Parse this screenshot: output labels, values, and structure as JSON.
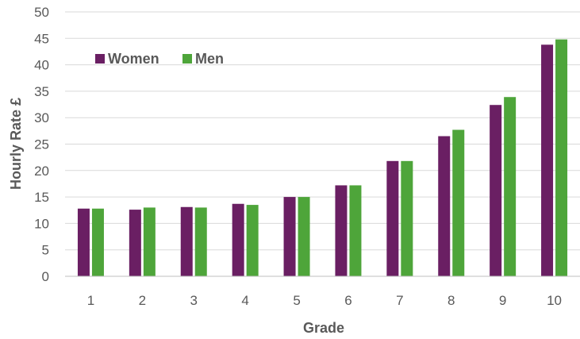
{
  "chart_data": {
    "type": "bar",
    "categories": [
      "1",
      "2",
      "3",
      "4",
      "5",
      "6",
      "7",
      "8",
      "9",
      "10"
    ],
    "series": [
      {
        "name": "Women",
        "color": "#6a1f63",
        "values": [
          12.8,
          12.6,
          13.1,
          13.7,
          15.0,
          17.2,
          21.8,
          26.5,
          32.4,
          43.8
        ]
      },
      {
        "name": "Men",
        "color": "#4ea53a",
        "values": [
          12.8,
          13.0,
          13.0,
          13.5,
          15.0,
          17.2,
          21.8,
          27.7,
          33.9,
          44.8
        ]
      }
    ],
    "xlabel": "Grade",
    "ylabel": "Hourly Rate £",
    "ylim": [
      0,
      50
    ],
    "yticks": [
      0,
      5,
      10,
      15,
      20,
      25,
      30,
      35,
      40,
      45,
      50
    ],
    "grid": true,
    "legend_position": "top-left"
  }
}
